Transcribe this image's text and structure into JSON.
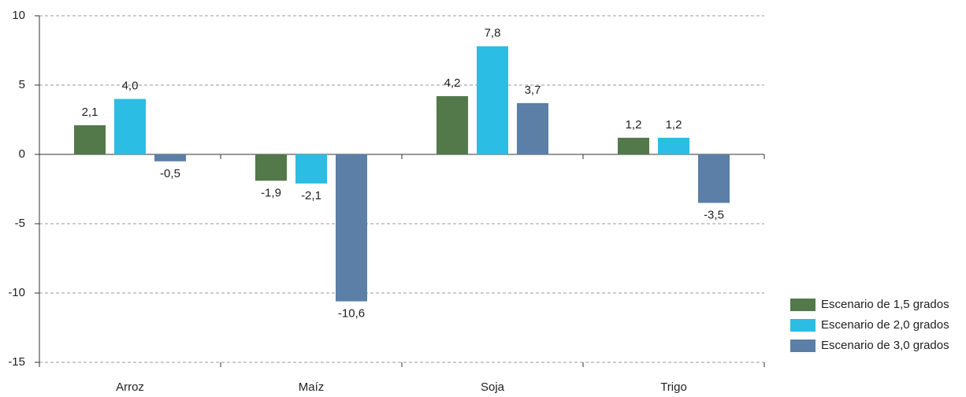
{
  "chart_data": {
    "type": "bar",
    "categories": [
      "Arroz",
      "Maíz",
      "Soja",
      "Trigo"
    ],
    "series": [
      {
        "name": "Escenario de 1,5 grados",
        "color": "#53784a",
        "values": [
          2.1,
          -1.9,
          4.2,
          1.2
        ],
        "value_labels": [
          "2,1",
          "-1,9",
          "4,2",
          "1,2"
        ]
      },
      {
        "name": "Escenario de 2,0 grados",
        "color": "#2bbde4",
        "values": [
          4.0,
          -2.1,
          7.8,
          1.2
        ],
        "value_labels": [
          "4,0",
          "-2,1",
          "7,8",
          "1,2"
        ]
      },
      {
        "name": "Escenario de 3,0 grados",
        "color": "#5b7fa6",
        "values": [
          -0.5,
          -10.6,
          3.7,
          -3.5
        ],
        "value_labels": [
          "-0,5",
          "-10,6",
          "3,7",
          "-3,5"
        ]
      }
    ],
    "ylim": [
      -15,
      10
    ],
    "yticks": [
      -15,
      -10,
      -5,
      0,
      5,
      10
    ],
    "grid": true,
    "legend": "lower right"
  }
}
